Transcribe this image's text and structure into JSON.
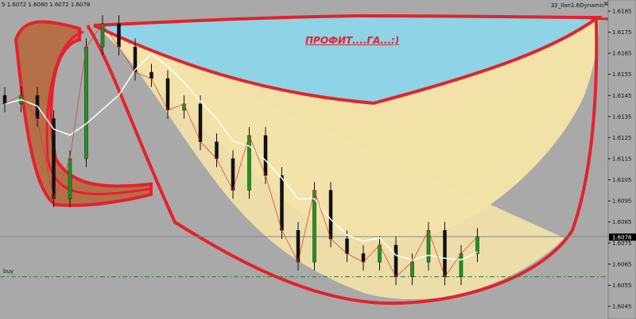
{
  "header": {
    "symbol_period_fragment": "5",
    "ohlc": "1.6072 1.6080 1.6072 1.6078"
  },
  "expert": {
    "name": "32_Ilan1.6Dynamic",
    "close_icon": "close-icon"
  },
  "annotation_text": "ПРОФИТ....ГА...:)",
  "buy_label": "buy",
  "colors": {
    "background": "#a9a9a9",
    "annotation_stroke": "#e3222c",
    "profit_fill": "#8fd3e6",
    "cup_fill": "#f3e2a8",
    "handle_fill": "#b5704a",
    "bull": "#1a9a1a",
    "bear": "#111111",
    "ma": "#ffffff",
    "buy_line": "#2f7a2f"
  },
  "chart_data": {
    "type": "line",
    "title": "",
    "xlabel": "",
    "ylabel": "",
    "ylim": [
      1.6042,
      1.619
    ],
    "y_ticks": [
      "1.6185",
      "1.6175",
      "1.6165",
      "1.6155",
      "1.6145",
      "1.6135",
      "1.6125",
      "1.6115",
      "1.6105",
      "1.6095",
      "1.6085",
      "1.6075",
      "1.6065",
      "1.6055",
      "1.6045"
    ],
    "current_price": "1.6078",
    "buy_level": 1.6059,
    "close": [
      1.6141,
      1.6145,
      1.6134,
      1.6096,
      1.6115,
      1.6168,
      1.6179,
      1.6168,
      1.6156,
      1.6153,
      1.6138,
      1.6141,
      1.6123,
      1.6115,
      1.61,
      1.6126,
      1.6107,
      1.6081,
      1.6066,
      1.61,
      1.6077,
      1.607,
      1.6066,
      1.6074,
      1.6059,
      1.6066,
      1.6081,
      1.6059,
      1.607,
      1.6078
    ],
    "grid": false
  }
}
